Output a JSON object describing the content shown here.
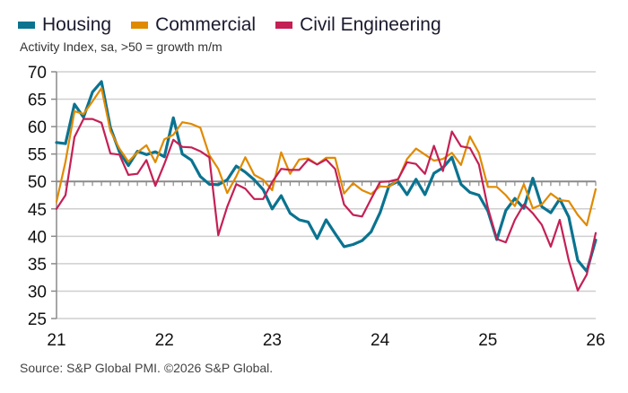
{
  "chart_data": {
    "type": "line",
    "title": "",
    "subtitle": "Activity Index, sa, >50 = growth m/m",
    "source": "Source: S&P Global PMI. ©2026 S&P Global.",
    "xlabel": "",
    "ylabel": "",
    "ylim": [
      25,
      70
    ],
    "yticks": [
      25,
      30,
      35,
      40,
      45,
      50,
      55,
      60,
      65,
      70
    ],
    "x_tick_labels": [
      "21",
      "22",
      "23",
      "24",
      "25",
      "26"
    ],
    "x_start": "2021-01",
    "x_end": "2026-01",
    "frequency": "monthly",
    "reference_line": 50,
    "grid": true,
    "legend_position": "top-left",
    "series": [
      {
        "name": "Housing",
        "color": "#0a7390",
        "values": [
          57.1,
          56.9,
          64.1,
          61.7,
          66.3,
          68.2,
          59.8,
          55.4,
          52.9,
          55.5,
          54.9,
          55.4,
          54.5,
          61.6,
          55.0,
          53.9,
          50.9,
          49.5,
          49.4,
          50.3,
          52.8,
          51.7,
          50.3,
          48.5,
          45.0,
          47.4,
          44.2,
          43.0,
          42.6,
          39.6,
          43.0,
          40.5,
          38.1,
          38.5,
          39.2,
          40.8,
          44.3,
          49.2,
          50.0,
          47.6,
          50.4,
          47.6,
          51.5,
          52.5,
          54.4,
          49.5,
          48.0,
          47.5,
          44.6,
          39.4,
          44.7,
          46.9,
          45.1,
          50.6,
          45.4,
          44.3,
          46.8,
          43.5,
          35.6,
          33.6,
          39.3
        ]
      },
      {
        "name": "Commercial",
        "color": "#e08a00",
        "values": [
          46.3,
          53.6,
          62.8,
          62.3,
          64.6,
          67.0,
          59.2,
          56.0,
          53.6,
          55.3,
          56.6,
          53.5,
          57.7,
          58.5,
          60.8,
          60.5,
          59.8,
          54.8,
          52.3,
          47.9,
          50.9,
          54.4,
          51.2,
          50.3,
          48.4,
          55.3,
          51.4,
          54.0,
          54.2,
          53.1,
          54.3,
          54.3,
          47.8,
          49.7,
          48.4,
          47.7,
          49.1,
          49.0,
          50.3,
          54.1,
          56.0,
          54.9,
          53.8,
          54.1,
          55.2,
          53.0,
          58.2,
          55.2,
          49.0,
          49.0,
          47.5,
          45.5,
          49.5,
          45.1,
          45.8,
          47.8,
          46.6,
          46.4,
          43.9,
          42.0,
          48.6
        ]
      },
      {
        "name": "Civil Engineering",
        "color": "#c42055",
        "values": [
          45.0,
          47.5,
          58.1,
          61.4,
          61.4,
          60.7,
          55.1,
          54.9,
          51.2,
          51.4,
          53.9,
          49.2,
          53.2,
          57.6,
          56.3,
          56.2,
          55.5,
          54.4,
          40.2,
          45.4,
          49.5,
          48.7,
          46.8,
          46.8,
          49.9,
          52.3,
          52.1,
          52.1,
          54.0,
          53.1,
          54.0,
          52.3,
          45.8,
          43.9,
          43.6,
          46.8,
          49.9,
          50.0,
          50.4,
          53.5,
          53.2,
          51.4,
          56.5,
          51.9,
          59.1,
          56.4,
          56.1,
          53.1,
          45.2,
          39.5,
          38.9,
          43.0,
          45.8,
          44.2,
          42.1,
          38.1,
          43.0,
          35.6,
          30.1,
          33.0,
          40.6
        ]
      }
    ]
  }
}
